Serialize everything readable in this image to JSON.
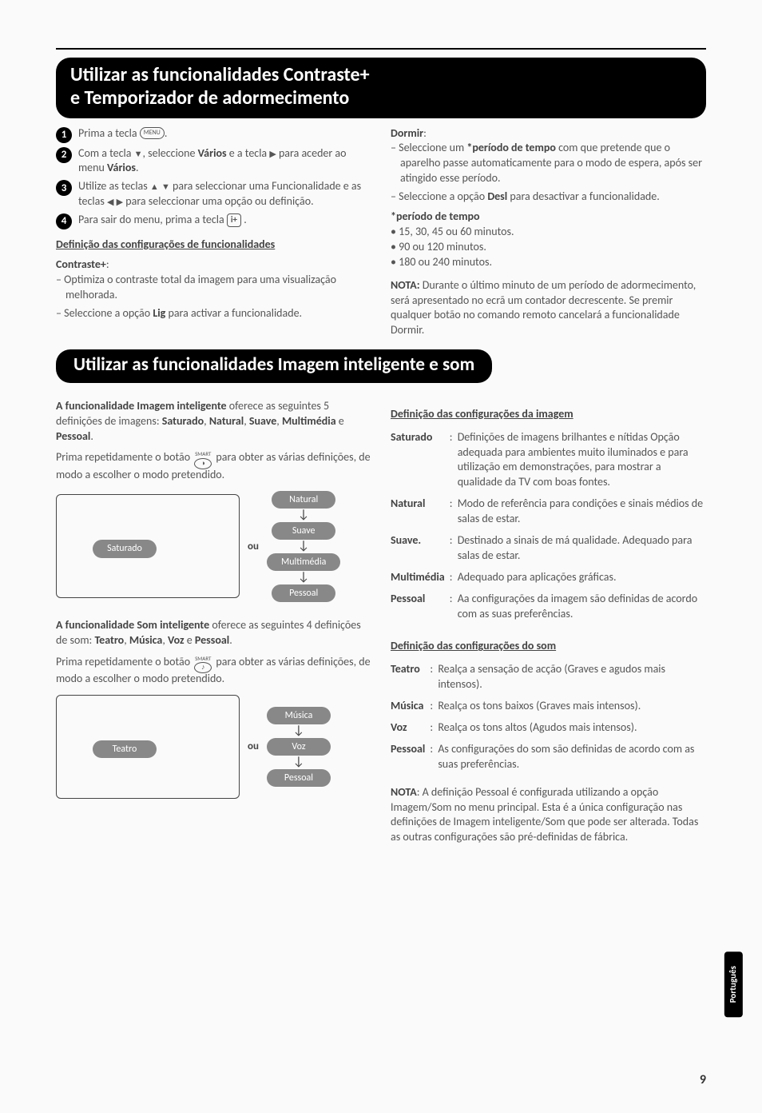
{
  "meta": {
    "language_tab": "Português",
    "page_number": "9"
  },
  "section1": {
    "banner_line1": "Utilizar as funcionalidades Contraste+",
    "banner_line2": "e Temporizador de adormecimento",
    "steps": {
      "s1a": "Prima a tecla ",
      "s1b": ".",
      "s2a": "Com a tecla ",
      "s2b": ", seleccione ",
      "s2c": "Vários",
      "s2d": " e a tecla ",
      "s2e": " para aceder ao menu ",
      "s2f": "Vários",
      "s2g": ".",
      "s3a": "Utilize as teclas ",
      "s3b": " para seleccionar uma Funcionalidade e as teclas ",
      "s3c": " para seleccionar uma opção ou definição.",
      "s4a": "Para sair do menu, prima a tecla ",
      "s4b": " ."
    },
    "left": {
      "heading": "Definição das configurações de funcionalidades",
      "contrast_label": "Contraste+",
      "contrast_items": [
        "Optimiza o contraste total da imagem para uma visualização melhorada.",
        "Seleccione a opção <b>Lig</b> para activar a funcionalidade."
      ]
    },
    "right": {
      "dormir_label": "Dormir",
      "dormir_items": [
        "Seleccione um <b>*período de tempo</b> com que pretende que o aparelho passe automaticamente para o modo de espera, após ser atingido esse período.",
        "Seleccione a opção <b>Desl</b> para desactivar a funcionalidade."
      ],
      "periodo_label": "*período de tempo",
      "periodo_items": [
        "15, 30, 45 ou 60 minutos.",
        "90 ou 120 minutos.",
        "180 ou 240 minutos."
      ],
      "nota_label": "NOTA:",
      "nota_text": " Durante o último minuto de um período de adormecimento, será apresentado no ecrã um contador decrescente. Se premir qualquer botão no comando remoto cancelará a funcionalidade Dormir."
    }
  },
  "section2": {
    "banner": "Utilizar as funcionalidades Imagem inteligente e som",
    "left": {
      "p1a": "A funcionalidade Imagem inteligente",
      "p1b": " oferece as seguintes 5 definições de imagens: ",
      "p1c": "Saturado",
      "p1d": "Natural",
      "p1e": "Suave",
      "p1f": "Multimédia",
      "p1g": "Pessoal",
      "p2": "Prima repetidamente o botão ",
      "p2b": " para obter as várias definições, de modo a escolher o modo pretendido.",
      "ou": "ou",
      "tv1_pill": "Saturado",
      "stack1": [
        "Natural",
        "Suave",
        "Multimédia",
        "Pessoal"
      ],
      "p3a": "A funcionalidade Som inteligente",
      "p3b": " oferece as seguintes 4 definições de som: ",
      "p3c": "Teatro",
      "p3d": "Música",
      "p3e": "Voz",
      "p3f": "Pessoal",
      "p4": "Prima repetidamente o botão ",
      "p4b": " para obter as várias definições, de modo a escolher o modo pretendido.",
      "tv2_pill": "Teatro",
      "stack2": [
        "Música",
        "Voz",
        "Pessoal"
      ]
    },
    "right": {
      "img_heading": "Definição das configurações da imagem",
      "img_defs": [
        {
          "k": "Saturado",
          "v": "Definições de imagens brilhantes e nítidas Opção adequada para ambientes muito iluminados e para utilização em demonstrações, para mostrar a qualidade da TV com boas fontes."
        },
        {
          "k": "Natural",
          "v": "Modo de referência para condições e sinais médios de salas de estar."
        },
        {
          "k": "Suave.",
          "v": "Destinado a sinais de má qualidade. Adequado para salas de estar."
        },
        {
          "k": "Multimédia",
          "v": "Adequado para aplicações gráficas."
        },
        {
          "k": "Pessoal",
          "v": "Aa configurações da imagem são definidas de acordo com as suas preferências."
        }
      ],
      "snd_heading": "Definição das configurações do som",
      "snd_defs": [
        {
          "k": "Teatro",
          "v": "Realça a sensação de acção (Graves e agudos mais intensos)."
        },
        {
          "k": "Música",
          "v": "Realça os tons baixos (Graves mais intensos)."
        },
        {
          "k": "Voz",
          "v": "Realça os tons altos (Agudos mais intensos)."
        },
        {
          "k": "Pessoal",
          "v": "As configurações do som são definidas de acordo com as suas preferências."
        }
      ],
      "nota_label": "NOTA",
      "nota_text": ": A definição Pessoal é configurada utilizando a opção Imagem/Som no menu principal. Esta é a única configuração nas definições de Imagem inteligente/Som que pode ser alterada. Todas as outras configurações são pré-definidas de fábrica."
    }
  },
  "colors": {
    "pill_bg": "#888888",
    "text": "#555555"
  }
}
